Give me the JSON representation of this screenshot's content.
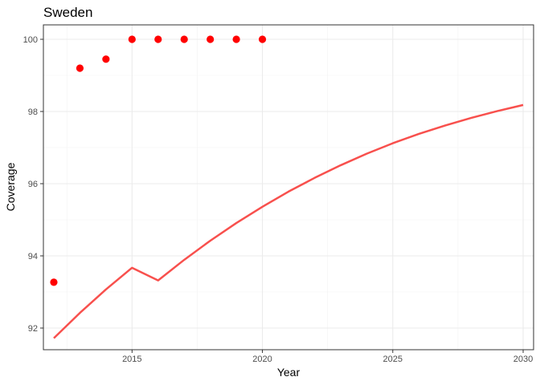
{
  "chart_data": {
    "type": "scatter",
    "title": "Sweden",
    "xlabel": "Year",
    "ylabel": "Coverage",
    "xlim": [
      2011.6,
      2030.4
    ],
    "ylim": [
      91.4,
      100.4
    ],
    "x_ticks": [
      2015,
      2020,
      2025,
      2030
    ],
    "x_tick_labels": [
      "2015",
      "2020",
      "2025",
      "2030"
    ],
    "y_ticks": [
      92,
      94,
      96,
      98,
      100
    ],
    "y_tick_labels": [
      "92",
      "94",
      "96",
      "98",
      "100"
    ],
    "grid": true,
    "legend": "none",
    "series": [
      {
        "type": "scatter",
        "color": "#ff0000",
        "points": [
          [
            2012,
            93.27
          ],
          [
            2013,
            99.2
          ],
          [
            2014,
            99.45
          ],
          [
            2015,
            100
          ],
          [
            2016,
            100
          ],
          [
            2017,
            100
          ],
          [
            2018,
            100
          ],
          [
            2019,
            100
          ],
          [
            2020,
            100
          ]
        ]
      },
      {
        "type": "line",
        "color": "#f8504d",
        "points": [
          [
            2012,
            91.72
          ],
          [
            2013,
            92.42
          ],
          [
            2014,
            93.07
          ],
          [
            2015,
            93.67
          ],
          [
            2016,
            93.32
          ],
          [
            2017,
            93.89
          ],
          [
            2018,
            94.42
          ],
          [
            2019,
            94.91
          ],
          [
            2020,
            95.36
          ],
          [
            2021,
            95.78
          ],
          [
            2022,
            96.16
          ],
          [
            2023,
            96.51
          ],
          [
            2024,
            96.83
          ],
          [
            2025,
            97.12
          ],
          [
            2026,
            97.38
          ],
          [
            2027,
            97.61
          ],
          [
            2028,
            97.82
          ],
          [
            2029,
            98.01
          ],
          [
            2030,
            98.18
          ]
        ]
      }
    ]
  }
}
